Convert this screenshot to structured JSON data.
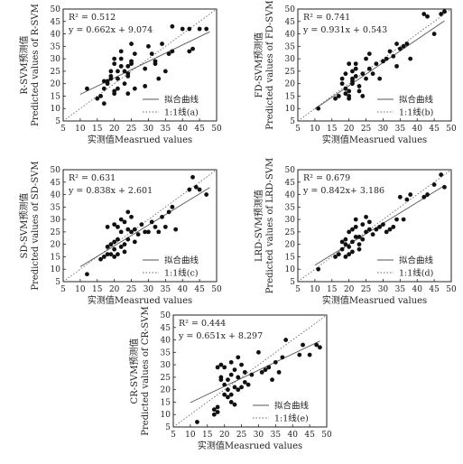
{
  "chart_data": [
    {
      "type": "scatter",
      "xlabel": "实测值Measrued values",
      "ylabel": [
        "R-SVM预测值",
        "Predicted values of R-SVM"
      ],
      "xlim": [
        5,
        50
      ],
      "ylim": [
        5,
        50
      ],
      "ticks": [
        5,
        10,
        15,
        20,
        25,
        30,
        35,
        40,
        45,
        50
      ],
      "annotation": [
        "R² = 0.512",
        "y = 0.662x + 9.074"
      ],
      "legend": [
        "拟合曲线",
        "1:1线(a)"
      ],
      "fit": {
        "slope": 0.662,
        "intercept": 9.074
      },
      "points": [
        [
          12,
          18
        ],
        [
          15,
          14
        ],
        [
          16,
          15
        ],
        [
          17,
          18
        ],
        [
          17,
          21
        ],
        [
          18,
          20
        ],
        [
          18,
          21
        ],
        [
          19,
          22
        ],
        [
          19,
          23
        ],
        [
          19,
          25
        ],
        [
          20,
          28
        ],
        [
          20,
          30
        ],
        [
          20,
          16
        ],
        [
          20,
          17
        ],
        [
          21,
          18
        ],
        [
          21,
          22
        ],
        [
          21,
          25
        ],
        [
          22,
          30
        ],
        [
          22,
          33
        ],
        [
          22,
          27
        ],
        [
          23,
          25
        ],
        [
          23,
          20
        ],
        [
          24,
          24
        ],
        [
          24,
          27
        ],
        [
          24,
          16
        ],
        [
          24,
          23
        ],
        [
          25,
          28
        ],
        [
          25,
          29
        ],
        [
          25,
          36
        ],
        [
          26,
          32
        ],
        [
          26,
          18
        ],
        [
          29,
          26
        ],
        [
          29,
          19
        ],
        [
          30,
          35
        ],
        [
          31,
          32
        ],
        [
          32,
          28
        ],
        [
          32,
          29
        ],
        [
          33,
          22
        ],
        [
          34,
          36
        ],
        [
          35,
          25
        ],
        [
          36,
          32
        ],
        [
          37,
          33
        ],
        [
          37,
          43
        ],
        [
          40,
          42
        ],
        [
          42,
          33
        ],
        [
          42,
          42
        ],
        [
          43,
          34
        ],
        [
          45,
          42
        ],
        [
          47,
          42
        ],
        [
          17,
          12
        ]
      ]
    },
    {
      "type": "scatter",
      "xlabel": "实测值Measrued values",
      "ylabel": [
        "FD-SVM预测值",
        "Predicted values of FD-SVM"
      ],
      "xlim": [
        5,
        50
      ],
      "ylim": [
        5,
        50
      ],
      "ticks": [
        5,
        10,
        15,
        20,
        25,
        30,
        35,
        40,
        45,
        50
      ],
      "annotation": [
        "R² = 0.741",
        "y = 0.931x + 0.543"
      ],
      "legend": [
        "拟合曲线",
        "1:1线(b)"
      ],
      "fit": {
        "slope": 0.931,
        "intercept": 0.543
      },
      "points": [
        [
          11,
          10
        ],
        [
          16,
          14
        ],
        [
          17,
          15
        ],
        [
          18,
          20
        ],
        [
          18,
          22
        ],
        [
          19,
          24
        ],
        [
          19,
          18
        ],
        [
          19,
          16
        ],
        [
          20,
          28
        ],
        [
          20,
          17
        ],
        [
          20,
          15
        ],
        [
          20,
          14
        ],
        [
          21,
          20
        ],
        [
          21,
          22
        ],
        [
          21,
          25
        ],
        [
          22,
          23
        ],
        [
          22,
          26
        ],
        [
          22,
          28
        ],
        [
          23,
          19
        ],
        [
          23,
          17
        ],
        [
          24,
          24
        ],
        [
          24,
          15
        ],
        [
          25,
          30
        ],
        [
          25,
          22
        ],
        [
          26,
          26
        ],
        [
          26,
          32
        ],
        [
          27,
          24
        ],
        [
          28,
          28
        ],
        [
          29,
          22
        ],
        [
          30,
          29
        ],
        [
          31,
          30
        ],
        [
          32,
          33
        ],
        [
          33,
          31
        ],
        [
          34,
          27
        ],
        [
          34,
          36
        ],
        [
          35,
          34
        ],
        [
          36,
          35
        ],
        [
          37,
          36
        ],
        [
          38,
          30
        ],
        [
          42,
          48
        ],
        [
          43,
          47
        ],
        [
          45,
          40
        ],
        [
          47,
          48
        ],
        [
          48,
          49
        ],
        [
          21,
          21
        ]
      ]
    },
    {
      "type": "scatter",
      "xlabel": "实测值Measrued values",
      "ylabel": [
        "SD-SVM预测值",
        "Predicted values of SD-SVM"
      ],
      "xlim": [
        5,
        50
      ],
      "ylim": [
        5,
        50
      ],
      "ticks": [
        5,
        10,
        15,
        20,
        25,
        30,
        35,
        40,
        45,
        50
      ],
      "annotation": [
        "R² = 0.631",
        "y = 0.838x + 2.601"
      ],
      "legend": [
        "拟合曲线",
        "1:1线(c)"
      ],
      "fit": {
        "slope": 0.838,
        "intercept": 2.601
      },
      "points": [
        [
          12,
          8
        ],
        [
          16,
          14
        ],
        [
          17,
          15
        ],
        [
          18,
          16
        ],
        [
          18,
          19
        ],
        [
          19,
          20
        ],
        [
          19,
          16
        ],
        [
          20,
          18
        ],
        [
          20,
          15
        ],
        [
          20,
          21
        ],
        [
          21,
          22
        ],
        [
          21,
          16
        ],
        [
          21,
          27
        ],
        [
          22,
          19
        ],
        [
          22,
          30
        ],
        [
          22,
          25
        ],
        [
          23,
          17
        ],
        [
          23,
          20
        ],
        [
          23,
          29
        ],
        [
          24,
          22
        ],
        [
          24,
          26
        ],
        [
          24,
          33
        ],
        [
          25,
          31
        ],
        [
          25,
          25
        ],
        [
          26,
          26
        ],
        [
          26,
          21
        ],
        [
          27,
          24
        ],
        [
          28,
          28
        ],
        [
          29,
          25
        ],
        [
          30,
          25
        ],
        [
          31,
          29
        ],
        [
          32,
          27
        ],
        [
          33,
          25
        ],
        [
          34,
          31
        ],
        [
          35,
          27
        ],
        [
          36,
          33
        ],
        [
          37,
          35
        ],
        [
          38,
          26
        ],
        [
          42,
          42
        ],
        [
          43,
          47
        ],
        [
          44,
          43
        ],
        [
          45,
          42
        ],
        [
          47,
          40
        ],
        [
          18,
          27
        ],
        [
          20,
          28
        ]
      ]
    },
    {
      "type": "scatter",
      "xlabel": "实测值Measrued values",
      "ylabel": [
        "LRD-SVM预测值",
        "Predicted values of LRD-SVM"
      ],
      "xlim": [
        5,
        50
      ],
      "ylim": [
        5,
        50
      ],
      "ticks": [
        5,
        10,
        15,
        20,
        25,
        30,
        35,
        40,
        45,
        50
      ],
      "annotation": [
        "R² = 0.679",
        "y = 0.842x+ 3.186"
      ],
      "legend": [
        "拟合曲线",
        "1:1线(d)"
      ],
      "fit": {
        "slope": 0.842,
        "intercept": 3.186
      },
      "points": [
        [
          11,
          10
        ],
        [
          16,
          15
        ],
        [
          17,
          16
        ],
        [
          18,
          18
        ],
        [
          18,
          21
        ],
        [
          19,
          20
        ],
        [
          19,
          22
        ],
        [
          19,
          15
        ],
        [
          20,
          16
        ],
        [
          20,
          19
        ],
        [
          20,
          25
        ],
        [
          21,
          21
        ],
        [
          21,
          26
        ],
        [
          22,
          23
        ],
        [
          22,
          27
        ],
        [
          22,
          30
        ],
        [
          23,
          20
        ],
        [
          23,
          18
        ],
        [
          24,
          22
        ],
        [
          24,
          28
        ],
        [
          25,
          25
        ],
        [
          25,
          31
        ],
        [
          26,
          26
        ],
        [
          26,
          29
        ],
        [
          27,
          24
        ],
        [
          28,
          26
        ],
        [
          29,
          27
        ],
        [
          30,
          28
        ],
        [
          31,
          25
        ],
        [
          32,
          26
        ],
        [
          33,
          27
        ],
        [
          34,
          30
        ],
        [
          35,
          39
        ],
        [
          36,
          30
        ],
        [
          37,
          38
        ],
        [
          38,
          40
        ],
        [
          42,
          39
        ],
        [
          43,
          40
        ],
        [
          45,
          44
        ],
        [
          47,
          48
        ],
        [
          48,
          43
        ],
        [
          21,
          17
        ],
        [
          23,
          23
        ]
      ]
    },
    {
      "type": "scatter",
      "xlabel": "实测值Measrued values",
      "ylabel": [
        "CR-SVM预测值",
        "Predicted values of CR-SVM"
      ],
      "xlim": [
        5,
        50
      ],
      "ylim": [
        5,
        50
      ],
      "ticks": [
        5,
        10,
        15,
        20,
        25,
        30,
        35,
        40,
        45,
        50
      ],
      "annotation": [
        "R² = 0.444",
        "y = 0.651x + 8.297"
      ],
      "legend": [
        "拟合曲线",
        "1:1线(e)"
      ],
      "fit": {
        "slope": 0.651,
        "intercept": 8.297
      },
      "points": [
        [
          12,
          7
        ],
        [
          17,
          10
        ],
        [
          17,
          12
        ],
        [
          18,
          11
        ],
        [
          18,
          13
        ],
        [
          18,
          29
        ],
        [
          19,
          25
        ],
        [
          19,
          30
        ],
        [
          20,
          18
        ],
        [
          20,
          22
        ],
        [
          20,
          29
        ],
        [
          21,
          17
        ],
        [
          21,
          20
        ],
        [
          21,
          24
        ],
        [
          22,
          15
        ],
        [
          22,
          18
        ],
        [
          22,
          26
        ],
        [
          22,
          31
        ],
        [
          23,
          14
        ],
        [
          23,
          21
        ],
        [
          23,
          28
        ],
        [
          24,
          20
        ],
        [
          24,
          25
        ],
        [
          24,
          33
        ],
        [
          25,
          21
        ],
        [
          25,
          30
        ],
        [
          26,
          27
        ],
        [
          27,
          22
        ],
        [
          28,
          26
        ],
        [
          30,
          35
        ],
        [
          31,
          27
        ],
        [
          32,
          28
        ],
        [
          33,
          29
        ],
        [
          34,
          24
        ],
        [
          35,
          31
        ],
        [
          36,
          27
        ],
        [
          37,
          33
        ],
        [
          38,
          40
        ],
        [
          42,
          34
        ],
        [
          43,
          38
        ],
        [
          45,
          34
        ],
        [
          47,
          38
        ],
        [
          48,
          37
        ],
        [
          19,
          24
        ],
        [
          26,
          23
        ]
      ]
    }
  ]
}
